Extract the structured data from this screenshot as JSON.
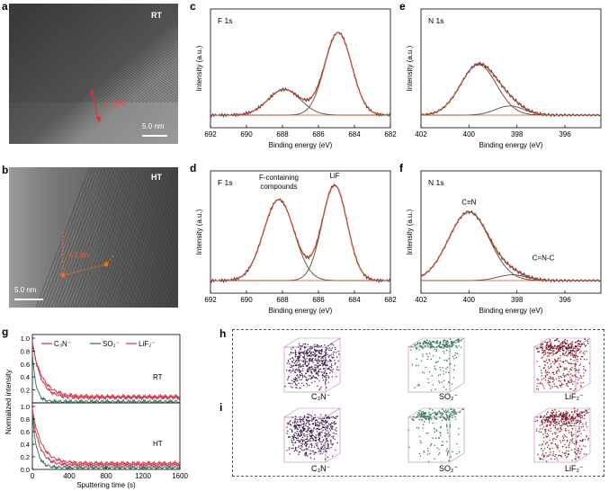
{
  "panels": {
    "a": {
      "label": "a",
      "tag": "RT",
      "measure": "5.0 nm",
      "scale": "5.0 nm"
    },
    "b": {
      "label": "b",
      "tag": "HT",
      "measure": "4.1 nm",
      "scale": "5.0 nm"
    },
    "c": {
      "label": "c",
      "title": "F 1s",
      "ylabel": "Intensity (a.u.)",
      "xlabel": "Binding energy (eV)",
      "xticks": [
        "692",
        "690",
        "688",
        "686",
        "684",
        "682"
      ]
    },
    "d": {
      "label": "d",
      "title": "F 1s",
      "ylabel": "Intensity (a.u.)",
      "xlabel": "Binding energy (eV)",
      "xticks": [
        "692",
        "690",
        "688",
        "686",
        "684",
        "682"
      ],
      "annot1a": "F-containing",
      "annot1b": "compounds",
      "annot2": "LiF"
    },
    "e": {
      "label": "e",
      "title": "N 1s",
      "ylabel": "Intensity (a.u.)",
      "xlabel": "Binding energy (eV)",
      "xticks": [
        "402",
        "400",
        "398",
        "396"
      ]
    },
    "f": {
      "label": "f",
      "title": "N 1s",
      "ylabel": "Intensity (a.u.)",
      "xlabel": "Binding energy (eV)",
      "xticks": [
        "402",
        "400",
        "398",
        "396"
      ],
      "annot1": "C≡N",
      "annot2": "C=N-C"
    },
    "g": {
      "label": "g",
      "ylabel": "Normalized intensity",
      "xlabel": "Sputtering time (s)",
      "legend": [
        "C₃N⁻",
        "SO₂⁻",
        "LiF₂⁻"
      ],
      "top_tag": "RT",
      "bottom_tag": "HT",
      "yticks_top": [
        "1.0",
        "0.8",
        "0.6",
        "0.4",
        "0.2"
      ],
      "yticks_bottom": [
        "1.0",
        "0.8",
        "0.6",
        "0.4",
        "0.2",
        "0.0"
      ],
      "xticks": [
        "0",
        "400",
        "800",
        "1200",
        "1600"
      ]
    },
    "h": {
      "label": "h",
      "cubes": [
        "C₃N⁻",
        "SO₂⁻",
        "LiF₂⁻"
      ]
    },
    "i": {
      "label": "i",
      "cubes": [
        "C₃N⁻",
        "SO₂⁻",
        "LiF₂⁻"
      ]
    }
  },
  "colors": {
    "raw": "#333333",
    "fit": "#d9482b",
    "c3n": "#c0304a",
    "so2": "#2e6b55",
    "lif2": "#d8323e",
    "cube_c3n": "#3a1a4a",
    "cube_so2": "#2a6a4a",
    "cube_lif2": "#8a1f2a"
  },
  "chart_data": [
    {
      "panel": "c",
      "type": "line",
      "title": "F 1s",
      "xlabel": "Binding energy (eV)",
      "ylabel": "Intensity (a.u.)",
      "xlim": [
        692,
        682
      ],
      "series": [
        {
          "peaks": [
            {
              "center": 687.9,
              "height": 0.28,
              "width": 0.9
            },
            {
              "center": 684.9,
              "height": 0.9,
              "width": 0.75
            }
          ]
        }
      ]
    },
    {
      "panel": "d",
      "type": "line",
      "title": "F 1s",
      "xlabel": "Binding energy (eV)",
      "ylabel": "Intensity (a.u.)",
      "xlim": [
        692,
        682
      ],
      "series": [
        {
          "name": "F-containing compounds",
          "center": 688.2,
          "height": 0.85,
          "width": 0.85
        },
        {
          "name": "LiF",
          "center": 685.1,
          "height": 1.0,
          "width": 0.7
        }
      ]
    },
    {
      "panel": "e",
      "type": "line",
      "title": "N 1s",
      "xlabel": "Binding energy (eV)",
      "ylabel": "Intensity (a.u.)",
      "xlim": [
        402,
        394.5
      ],
      "series": [
        {
          "peaks": [
            {
              "center": 399.6,
              "height": 0.55,
              "width": 0.75
            },
            {
              "center": 398.3,
              "height": 0.1,
              "width": 0.6
            }
          ]
        }
      ]
    },
    {
      "panel": "f",
      "type": "line",
      "title": "N 1s",
      "xlabel": "Binding energy (eV)",
      "ylabel": "Intensity (a.u.)",
      "xlim": [
        402,
        394.5
      ],
      "series": [
        {
          "name": "C≡N",
          "center": 400.0,
          "height": 0.72,
          "width": 0.85
        },
        {
          "name": "C=N-C",
          "center": 398.2,
          "height": 0.06,
          "width": 0.6
        }
      ]
    },
    {
      "panel": "g",
      "type": "line",
      "xlabel": "Sputtering time (s)",
      "ylabel": "Normalized intensity",
      "xlim": [
        0,
        1600
      ],
      "ylim": [
        0,
        1.0
      ],
      "subplots": [
        {
          "tag": "RT",
          "series": [
            {
              "name": "C₃N⁻",
              "start": 0.95,
              "plateau": 0.08,
              "tau": 90
            },
            {
              "name": "SO₂⁻",
              "start": 0.75,
              "plateau": 0.02,
              "tau": 40
            },
            {
              "name": "LiF₂⁻",
              "start": 0.9,
              "plateau": 0.1,
              "tau": 110
            }
          ]
        },
        {
          "tag": "HT",
          "series": [
            {
              "name": "C₃N⁻",
              "start": 0.9,
              "plateau": 0.07,
              "tau": 80
            },
            {
              "name": "SO₂⁻",
              "start": 0.85,
              "plateau": 0.03,
              "tau": 50
            },
            {
              "name": "LiF₂⁻",
              "start": 0.95,
              "plateau": 0.1,
              "tau": 100
            }
          ]
        }
      ]
    }
  ]
}
